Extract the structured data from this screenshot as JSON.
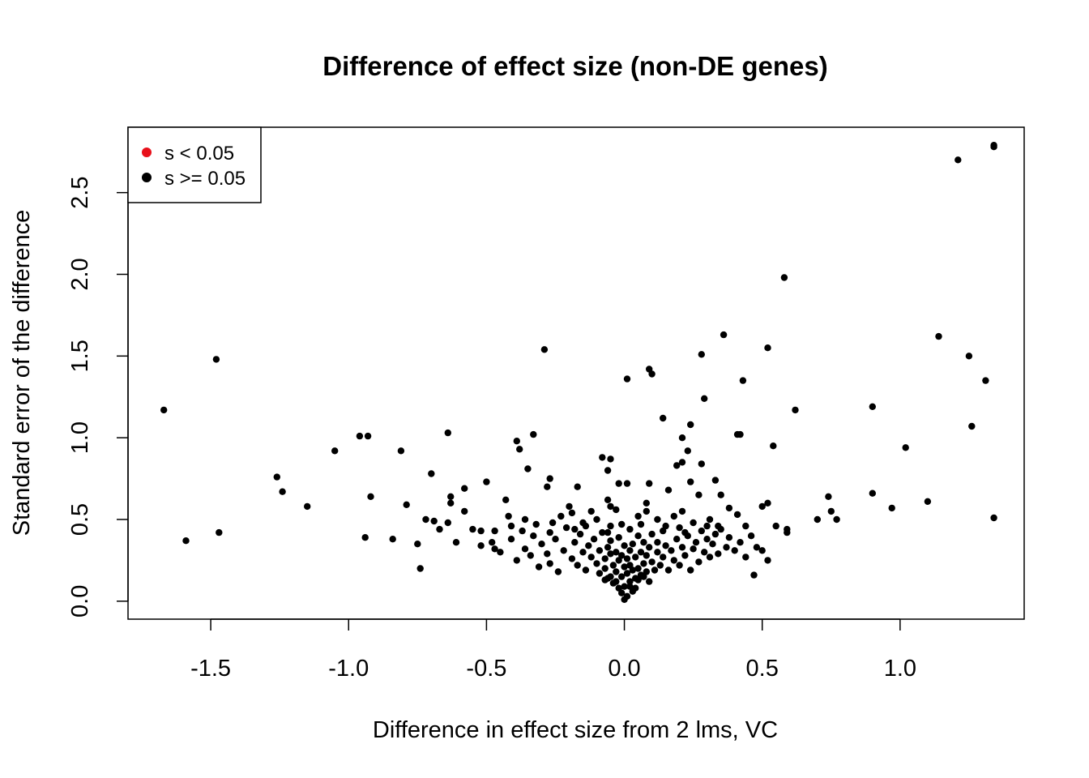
{
  "chart_data": {
    "type": "scatter",
    "title": "Difference of effect size (non-DE genes)",
    "xlabel": "Difference in effect size from 2 lms, VC",
    "ylabel": "Standard error of the difference",
    "xlim": [
      -1.8,
      1.45
    ],
    "ylim": [
      -0.11,
      2.9
    ],
    "x_ticks": [
      -1.5,
      -1.0,
      -0.5,
      0.0,
      0.5,
      1.0
    ],
    "x_tick_labels": [
      "-1.5",
      "-1.0",
      "-0.5",
      "0.0",
      "0.5",
      "1.0"
    ],
    "y_ticks": [
      0.0,
      0.5,
      1.0,
      1.5,
      2.0,
      2.5
    ],
    "y_tick_labels": [
      "0.0",
      "0.5",
      "1.0",
      "1.5",
      "2.0",
      "2.5"
    ],
    "grid": false,
    "legend": {
      "position": "top-left",
      "entries": [
        {
          "label": "s < 0.05",
          "color": "#e8101a"
        },
        {
          "label": "s >= 0.05",
          "color": "#000000"
        }
      ]
    },
    "series": [
      {
        "color": "#000000",
        "points": [
          [
            1.34,
            2.79
          ],
          [
            1.34,
            2.78
          ],
          [
            1.21,
            2.7
          ],
          [
            0.58,
            1.98
          ],
          [
            0.36,
            1.63
          ],
          [
            1.14,
            1.62
          ],
          [
            -0.29,
            1.54
          ],
          [
            0.52,
            1.55
          ],
          [
            0.28,
            1.51
          ],
          [
            1.25,
            1.5
          ],
          [
            -1.48,
            1.48
          ],
          [
            0.09,
            1.42
          ],
          [
            0.1,
            1.39
          ],
          [
            0.01,
            1.36
          ],
          [
            0.43,
            1.35
          ],
          [
            1.31,
            1.35
          ],
          [
            0.29,
            1.24
          ],
          [
            0.9,
            1.19
          ],
          [
            -1.67,
            1.17
          ],
          [
            0.62,
            1.17
          ],
          [
            0.14,
            1.12
          ],
          [
            0.24,
            1.08
          ],
          [
            1.26,
            1.07
          ],
          [
            -0.64,
            1.03
          ],
          [
            -0.33,
            1.02
          ],
          [
            0.41,
            1.02
          ],
          [
            0.42,
            1.02
          ],
          [
            -0.96,
            1.01
          ],
          [
            -0.93,
            1.01
          ],
          [
            0.21,
            1.0
          ],
          [
            -0.39,
            0.98
          ],
          [
            0.54,
            0.95
          ],
          [
            1.02,
            0.94
          ],
          [
            -0.38,
            0.93
          ],
          [
            -1.05,
            0.92
          ],
          [
            -0.81,
            0.92
          ],
          [
            0.23,
            0.92
          ],
          [
            -0.08,
            0.88
          ],
          [
            -0.05,
            0.87
          ],
          [
            0.21,
            0.85
          ],
          [
            0.28,
            0.84
          ],
          [
            0.19,
            0.83
          ],
          [
            -0.35,
            0.81
          ],
          [
            -0.06,
            0.8
          ],
          [
            -0.7,
            0.78
          ],
          [
            -0.27,
            0.75
          ],
          [
            -1.26,
            0.76
          ],
          [
            0.33,
            0.74
          ],
          [
            0.24,
            0.73
          ],
          [
            -0.5,
            0.73
          ],
          [
            -0.58,
            0.69
          ],
          [
            -0.02,
            0.72
          ],
          [
            0.01,
            0.72
          ],
          [
            0.09,
            0.72
          ],
          [
            -0.28,
            0.7
          ],
          [
            -0.17,
            0.7
          ],
          [
            0.16,
            0.68
          ],
          [
            -1.24,
            0.67
          ],
          [
            0.9,
            0.66
          ],
          [
            0.74,
            0.64
          ],
          [
            -0.63,
            0.64
          ],
          [
            -0.92,
            0.64
          ],
          [
            0.27,
            0.65
          ],
          [
            0.35,
            0.65
          ],
          [
            -0.43,
            0.62
          ],
          [
            -0.06,
            0.62
          ],
          [
            0.08,
            0.6
          ],
          [
            1.1,
            0.61
          ],
          [
            -0.63,
            0.6
          ],
          [
            0.52,
            0.6
          ],
          [
            0.5,
            0.58
          ],
          [
            -0.79,
            0.59
          ],
          [
            -0.05,
            0.58
          ],
          [
            0.38,
            0.57
          ],
          [
            0.97,
            0.57
          ],
          [
            -1.15,
            0.58
          ],
          [
            0.75,
            0.55
          ],
          [
            -0.58,
            0.55
          ],
          [
            0.21,
            0.55
          ],
          [
            -0.19,
            0.54
          ],
          [
            0.41,
            0.53
          ],
          [
            0.7,
            0.5
          ],
          [
            0.77,
            0.5
          ],
          [
            -0.72,
            0.5
          ],
          [
            1.34,
            0.51
          ],
          [
            -0.69,
            0.49
          ],
          [
            -0.15,
            0.48
          ],
          [
            -0.64,
            0.48
          ],
          [
            0.44,
            0.46
          ],
          [
            0.55,
            0.46
          ],
          [
            -0.41,
            0.46
          ],
          [
            -0.01,
            0.47
          ],
          [
            0.59,
            0.44
          ],
          [
            0.59,
            0.42
          ],
          [
            -1.47,
            0.42
          ],
          [
            -0.67,
            0.44
          ],
          [
            -0.55,
            0.44
          ],
          [
            -0.52,
            0.43
          ],
          [
            -0.47,
            0.43
          ],
          [
            -0.37,
            0.43
          ],
          [
            -0.94,
            0.39
          ],
          [
            -1.59,
            0.37
          ],
          [
            -0.84,
            0.38
          ],
          [
            -0.61,
            0.36
          ],
          [
            -0.75,
            0.35
          ],
          [
            -0.47,
            0.32
          ],
          [
            0.5,
            0.31
          ],
          [
            0.52,
            0.25
          ],
          [
            0.47,
            0.16
          ],
          [
            -0.74,
            0.2
          ],
          [
            -0.52,
            0.34
          ],
          [
            -0.48,
            0.36
          ],
          [
            -0.45,
            0.3
          ],
          [
            -0.41,
            0.38
          ],
          [
            -0.39,
            0.25
          ],
          [
            -0.36,
            0.32
          ],
          [
            -0.34,
            0.28
          ],
          [
            -0.33,
            0.4
          ],
          [
            -0.31,
            0.21
          ],
          [
            -0.3,
            0.35
          ],
          [
            -0.28,
            0.29
          ],
          [
            -0.27,
            0.23
          ],
          [
            -0.25,
            0.38
          ],
          [
            -0.24,
            0.18
          ],
          [
            -0.22,
            0.31
          ],
          [
            -0.21,
            0.45
          ],
          [
            -0.19,
            0.26
          ],
          [
            -0.18,
            0.36
          ],
          [
            -0.17,
            0.22
          ],
          [
            -0.16,
            0.41
          ],
          [
            -0.15,
            0.3
          ],
          [
            -0.14,
            0.19
          ],
          [
            -0.13,
            0.34
          ],
          [
            -0.12,
            0.27
          ],
          [
            -0.11,
            0.38
          ],
          [
            -0.1,
            0.23
          ],
          [
            -0.09,
            0.31
          ],
          [
            -0.09,
            0.17
          ],
          [
            -0.08,
            0.42
          ],
          [
            -0.07,
            0.26
          ],
          [
            -0.07,
            0.2
          ],
          [
            -0.06,
            0.33
          ],
          [
            -0.06,
            0.14
          ],
          [
            -0.05,
            0.29
          ],
          [
            -0.05,
            0.37
          ],
          [
            -0.04,
            0.22
          ],
          [
            -0.04,
            0.11
          ],
          [
            -0.03,
            0.3
          ],
          [
            -0.03,
            0.18
          ],
          [
            -0.02,
            0.25
          ],
          [
            -0.02,
            0.39
          ],
          [
            -0.01,
            0.15
          ],
          [
            -0.01,
            0.28
          ],
          [
            0.0,
            0.21
          ],
          [
            0.0,
            0.09
          ],
          [
            0.0,
            0.34
          ],
          [
            0.01,
            0.03
          ],
          [
            0.01,
            0.17
          ],
          [
            0.01,
            0.26
          ],
          [
            0.02,
            0.12
          ],
          [
            0.02,
            0.31
          ],
          [
            0.02,
            0.22
          ],
          [
            0.03,
            0.06
          ],
          [
            0.03,
            0.19
          ],
          [
            0.03,
            0.35
          ],
          [
            0.04,
            0.14
          ],
          [
            0.04,
            0.27
          ],
          [
            0.05,
            0.2
          ],
          [
            0.05,
            0.4
          ],
          [
            0.06,
            0.16
          ],
          [
            0.06,
            0.3
          ],
          [
            0.07,
            0.23
          ],
          [
            0.07,
            0.36
          ],
          [
            0.08,
            0.18
          ],
          [
            0.08,
            0.28
          ],
          [
            0.09,
            0.12
          ],
          [
            0.09,
            0.33
          ],
          [
            0.1,
            0.24
          ],
          [
            0.1,
            0.41
          ],
          [
            0.11,
            0.19
          ],
          [
            0.12,
            0.3
          ],
          [
            0.12,
            0.36
          ],
          [
            0.13,
            0.22
          ],
          [
            0.14,
            0.27
          ],
          [
            0.15,
            0.34
          ],
          [
            0.16,
            0.19
          ],
          [
            0.17,
            0.31
          ],
          [
            0.18,
            0.25
          ],
          [
            0.19,
            0.38
          ],
          [
            0.2,
            0.22
          ],
          [
            0.21,
            0.33
          ],
          [
            0.22,
            0.28
          ],
          [
            0.23,
            0.4
          ],
          [
            0.24,
            0.19
          ],
          [
            0.25,
            0.32
          ],
          [
            0.26,
            0.36
          ],
          [
            0.27,
            0.24
          ],
          [
            0.28,
            0.43
          ],
          [
            0.29,
            0.3
          ],
          [
            0.3,
            0.38
          ],
          [
            0.31,
            0.27
          ],
          [
            0.32,
            0.35
          ],
          [
            0.33,
            0.41
          ],
          [
            0.34,
            0.29
          ],
          [
            0.35,
            0.44
          ],
          [
            0.37,
            0.33
          ],
          [
            0.38,
            0.39
          ],
          [
            0.4,
            0.31
          ],
          [
            0.42,
            0.36
          ],
          [
            0.44,
            0.27
          ],
          [
            0.46,
            0.4
          ],
          [
            0.48,
            0.33
          ],
          [
            -0.2,
            0.58
          ],
          [
            -0.12,
            0.55
          ],
          [
            -0.1,
            0.5
          ],
          [
            -0.03,
            0.56
          ],
          [
            0.05,
            0.52
          ],
          [
            0.06,
            0.47
          ],
          [
            0.12,
            0.5
          ],
          [
            0.15,
            0.46
          ],
          [
            0.18,
            0.52
          ],
          [
            0.25,
            0.48
          ],
          [
            0.31,
            0.5
          ],
          [
            0.34,
            0.46
          ],
          [
            -0.26,
            0.48
          ],
          [
            -0.23,
            0.52
          ],
          [
            -0.32,
            0.47
          ],
          [
            -0.36,
            0.5
          ],
          [
            -0.42,
            0.52
          ],
          [
            0.08,
            0.55
          ],
          [
            -0.05,
            0.46
          ],
          [
            -0.14,
            0.46
          ],
          [
            0.02,
            0.44
          ],
          [
            0.14,
            0.43
          ],
          [
            0.2,
            0.45
          ],
          [
            0.3,
            0.46
          ],
          [
            0.22,
            0.42
          ],
          [
            -0.06,
            0.42
          ],
          [
            -0.18,
            0.44
          ],
          [
            -0.27,
            0.42
          ],
          [
            -0.01,
            0.05
          ],
          [
            0.0,
            0.01
          ],
          [
            -0.02,
            0.08
          ],
          [
            0.02,
            0.09
          ],
          [
            -0.03,
            0.12
          ],
          [
            0.04,
            0.08
          ],
          [
            -0.05,
            0.15
          ],
          [
            0.05,
            0.13
          ],
          [
            -0.07,
            0.13
          ],
          [
            0.07,
            0.15
          ]
        ]
      }
    ]
  }
}
